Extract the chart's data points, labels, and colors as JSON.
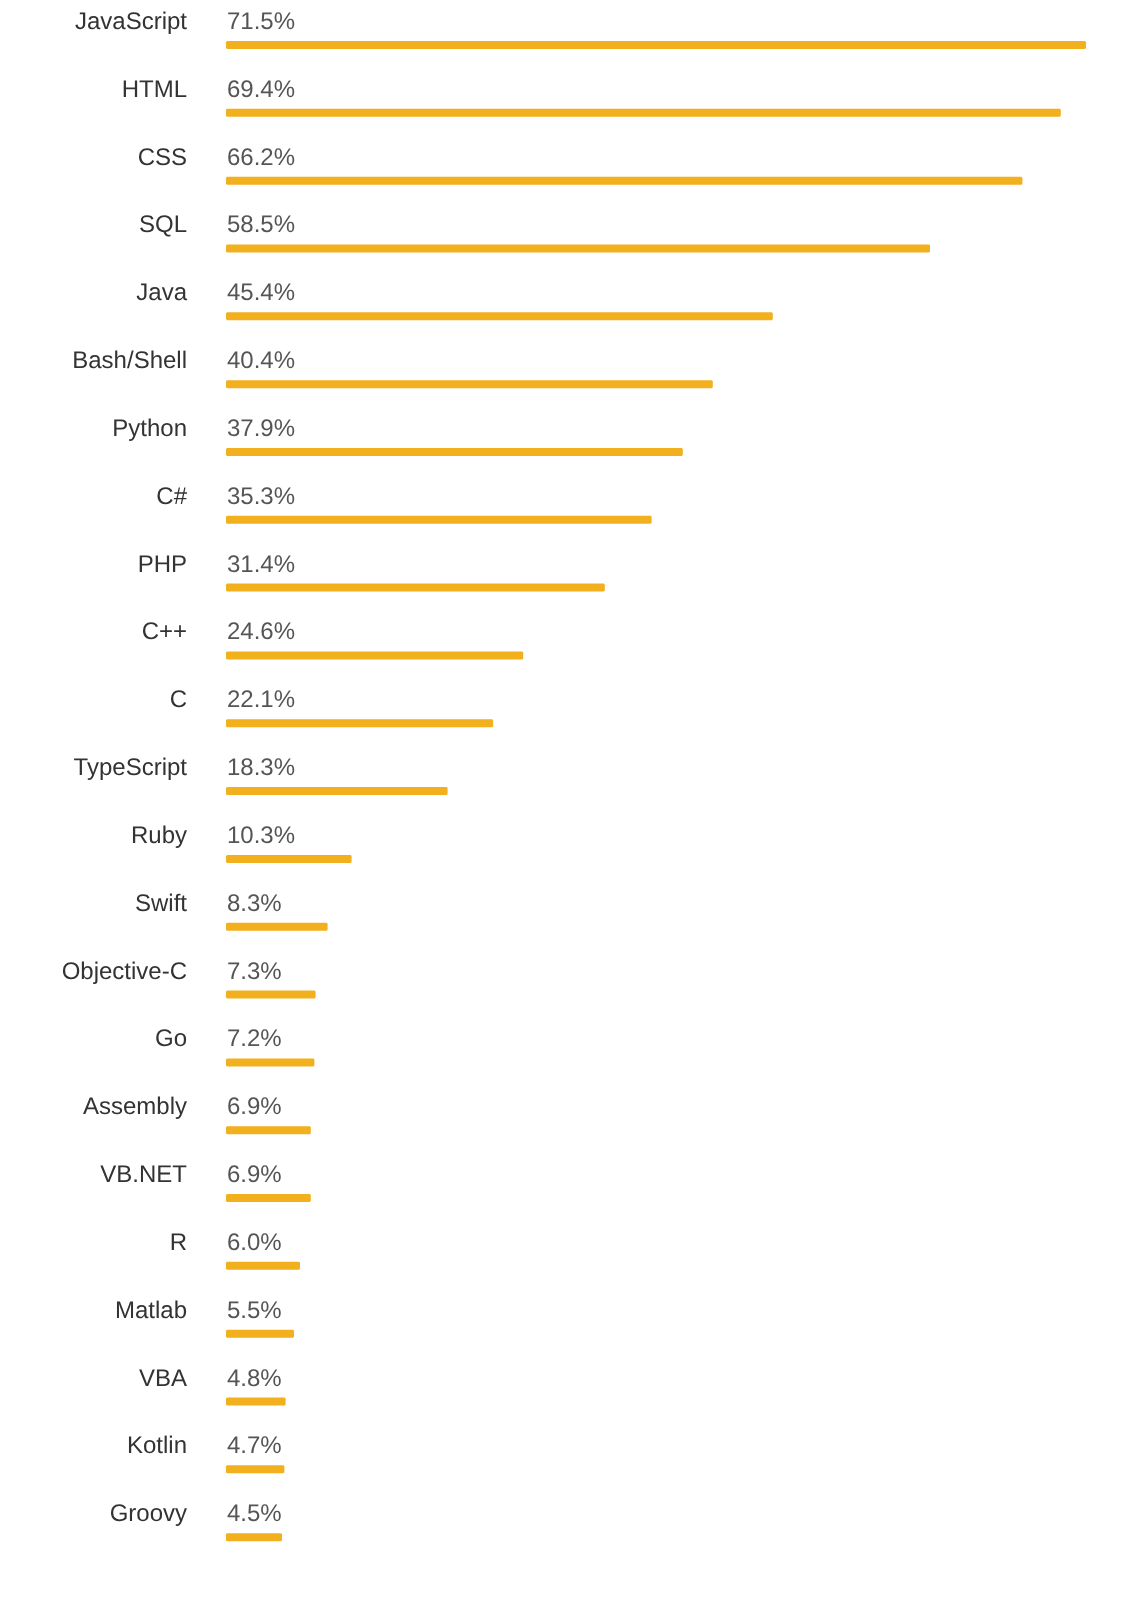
{
  "chart_data": {
    "type": "bar",
    "orientation": "horizontal",
    "color": "#f2b01e",
    "categories": [
      "JavaScript",
      "HTML",
      "CSS",
      "SQL",
      "Java",
      "Bash/Shell",
      "Python",
      "C#",
      "PHP",
      "C++",
      "C",
      "TypeScript",
      "Ruby",
      "Swift",
      "Objective-C",
      "Go",
      "Assembly",
      "VB.NET",
      "R",
      "Matlab",
      "VBA",
      "Kotlin",
      "Groovy"
    ],
    "values": [
      71.5,
      69.4,
      66.2,
      58.5,
      45.4,
      40.4,
      37.9,
      35.3,
      31.4,
      24.6,
      22.1,
      18.3,
      10.3,
      8.3,
      7.3,
      7.2,
      6.9,
      6.9,
      6.0,
      5.5,
      4.8,
      4.7,
      4.5
    ],
    "value_labels": [
      "71.5%",
      "69.4%",
      "66.2%",
      "58.5%",
      "45.4%",
      "40.4%",
      "37.9%",
      "35.3%",
      "31.4%",
      "24.6%",
      "22.1%",
      "18.3%",
      "10.3%",
      "8.3%",
      "7.3%",
      "7.2%",
      "6.9%",
      "6.9%",
      "6.0%",
      "5.5%",
      "4.8%",
      "4.7%",
      "4.5%"
    ]
  }
}
